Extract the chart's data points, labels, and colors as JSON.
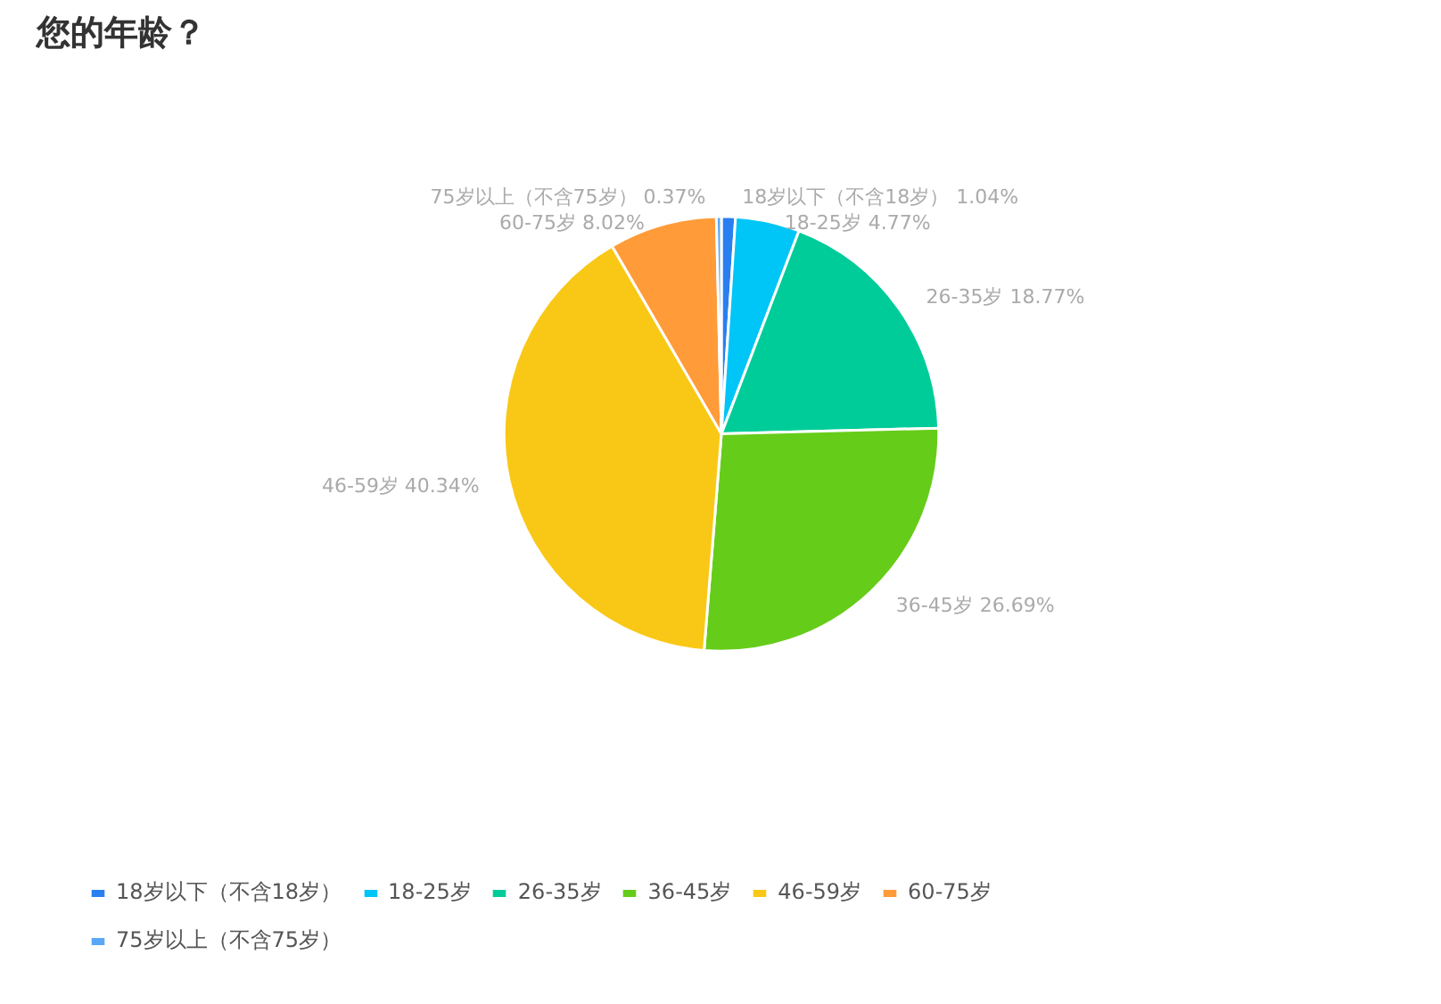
{
  "chart_data": {
    "type": "pie",
    "title": "您的年龄？",
    "categories": [
      "18岁以下（不含18岁）",
      "18-25岁",
      "26-35岁",
      "36-45岁",
      "46-59岁",
      "60-75岁",
      "75岁以上（不含75岁）"
    ],
    "values": [
      1.04,
      4.77,
      18.77,
      26.69,
      40.34,
      8.02,
      0.37
    ],
    "colors": [
      "#2a7ff0",
      "#00c5f7",
      "#00cc99",
      "#66cc1a",
      "#f9c816",
      "#ff9b38",
      "#5aa8f5"
    ],
    "value_labels": [
      "1.04%",
      "4.77%",
      "18.77%",
      "26.69%",
      "40.34%",
      "8.02%",
      "0.37%"
    ],
    "legend": "bottom"
  }
}
